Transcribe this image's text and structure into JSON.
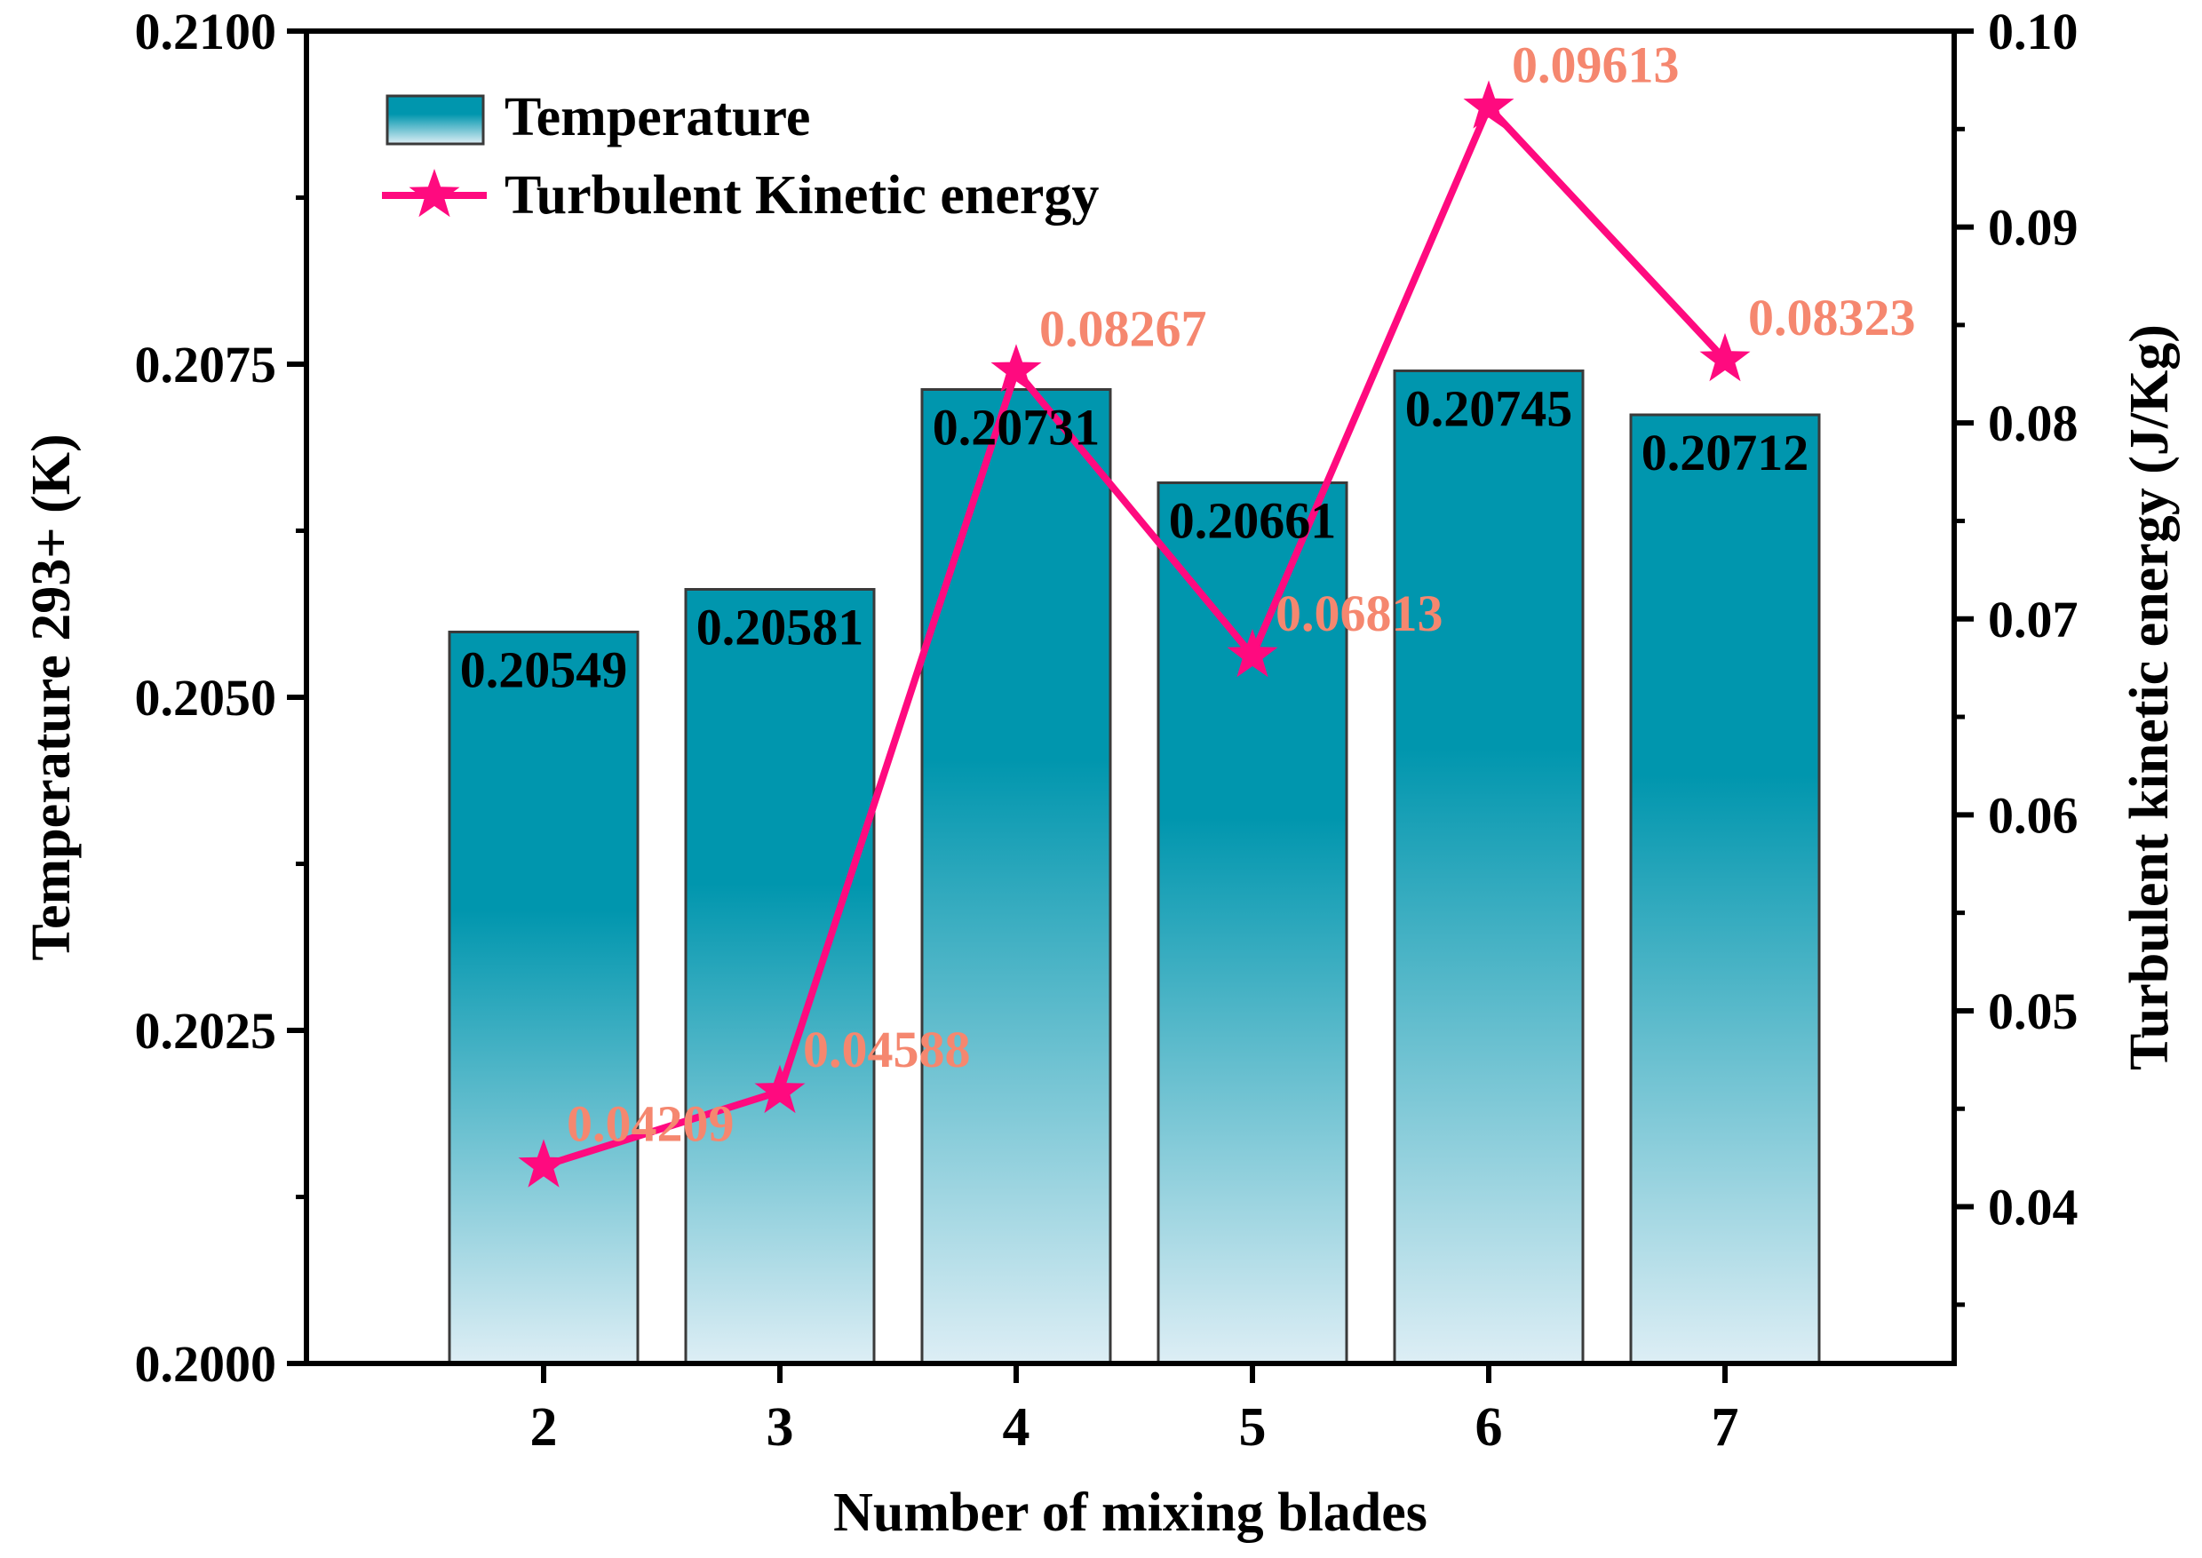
{
  "chart_data": {
    "type": "bar",
    "categories": [
      "2",
      "3",
      "4",
      "5",
      "6",
      "7"
    ],
    "xlabel": "Number of mixing blades",
    "ylabel_left": "Temperature 293+ (K)",
    "ylabel_right": "Turbulent kinetic energy (J/Kg)",
    "ylim_left": [
      0.2,
      0.21
    ],
    "ylim_right": [
      0.032,
      0.1
    ],
    "yticks_left": [
      "0.2000",
      "0.2025",
      "0.2050",
      "0.2075",
      "0.2100"
    ],
    "yticks_right": [
      "0.04",
      "0.05",
      "0.06",
      "0.07",
      "0.08",
      "0.09",
      "0.10"
    ],
    "grid": false,
    "legend_position": "top-left",
    "series": [
      {
        "name": "Temperature",
        "type": "bar",
        "axis": "left",
        "values": [
          0.20549,
          0.20581,
          0.20731,
          0.20661,
          0.20745,
          0.20712
        ],
        "labels": [
          "0.20549",
          "0.20581",
          "0.20731",
          "0.20661",
          "0.20745",
          "0.20712"
        ],
        "color_top": "#0096AE",
        "color_bottom": "#DDEEF5",
        "label_color": "#000000"
      },
      {
        "name": "Turbulent Kinetic energy",
        "type": "line",
        "marker": "star",
        "axis": "right",
        "values": [
          0.04209,
          0.04588,
          0.08267,
          0.06813,
          0.09613,
          0.08323
        ],
        "labels": [
          "0.04209",
          "0.04588",
          "0.08267",
          "0.06813",
          "0.09613",
          "0.08323"
        ],
        "color": "#FF0A7F",
        "label_color": "#F5876F"
      }
    ]
  }
}
